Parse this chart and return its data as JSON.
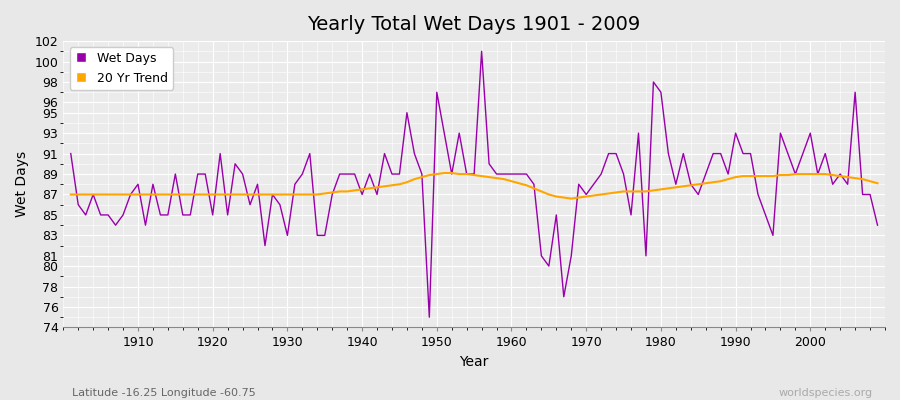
{
  "title": "Yearly Total Wet Days 1901 - 2009",
  "xlabel": "Year",
  "ylabel": "Wet Days",
  "subtitle": "Latitude -16.25 Longitude -60.75",
  "watermark": "worldspecies.org",
  "ylim": [
    74,
    102
  ],
  "yticks": [
    74,
    76,
    78,
    80,
    81,
    83,
    85,
    87,
    89,
    91,
    93,
    95,
    96,
    98,
    100,
    102
  ],
  "xticks": [
    1910,
    1920,
    1930,
    1940,
    1950,
    1960,
    1970,
    1980,
    1990,
    2000
  ],
  "years": [
    1901,
    1902,
    1903,
    1904,
    1905,
    1906,
    1907,
    1908,
    1909,
    1910,
    1911,
    1912,
    1913,
    1914,
    1915,
    1916,
    1917,
    1918,
    1919,
    1920,
    1921,
    1922,
    1923,
    1924,
    1925,
    1926,
    1927,
    1928,
    1929,
    1930,
    1931,
    1932,
    1933,
    1934,
    1935,
    1936,
    1937,
    1938,
    1939,
    1940,
    1941,
    1942,
    1943,
    1944,
    1945,
    1946,
    1947,
    1948,
    1949,
    1950,
    1951,
    1952,
    1953,
    1954,
    1955,
    1956,
    1957,
    1958,
    1959,
    1960,
    1961,
    1962,
    1963,
    1964,
    1965,
    1966,
    1967,
    1968,
    1969,
    1970,
    1971,
    1972,
    1973,
    1974,
    1975,
    1976,
    1977,
    1978,
    1979,
    1980,
    1981,
    1982,
    1983,
    1984,
    1985,
    1986,
    1987,
    1988,
    1989,
    1990,
    1991,
    1992,
    1993,
    1994,
    1995,
    1996,
    1997,
    1998,
    1999,
    2000,
    2001,
    2002,
    2003,
    2004,
    2005,
    2006,
    2007,
    2008,
    2009
  ],
  "wet_days": [
    91,
    86,
    85,
    87,
    85,
    85,
    84,
    85,
    87,
    88,
    84,
    88,
    85,
    85,
    89,
    85,
    85,
    89,
    89,
    85,
    91,
    85,
    90,
    89,
    86,
    88,
    82,
    87,
    86,
    83,
    88,
    89,
    91,
    83,
    83,
    87,
    89,
    89,
    89,
    87,
    89,
    87,
    91,
    89,
    89,
    95,
    91,
    89,
    75,
    97,
    93,
    89,
    93,
    89,
    89,
    101,
    90,
    89,
    89,
    89,
    89,
    89,
    88,
    81,
    80,
    85,
    77,
    81,
    88,
    87,
    88,
    89,
    91,
    91,
    89,
    85,
    93,
    81,
    98,
    97,
    91,
    88,
    91,
    88,
    87,
    89,
    91,
    91,
    89,
    93,
    91,
    91,
    87,
    85,
    83,
    93,
    91,
    89,
    91,
    93,
    89,
    91,
    88,
    89,
    88,
    97,
    87,
    87,
    84
  ],
  "trend": [
    87.0,
    87.0,
    87.0,
    87.0,
    87.0,
    87.0,
    87.0,
    87.0,
    87.0,
    87.0,
    87.0,
    87.0,
    87.0,
    87.0,
    87.0,
    87.0,
    87.0,
    87.0,
    87.0,
    87.0,
    87.0,
    87.0,
    87.0,
    87.0,
    87.0,
    87.0,
    87.0,
    87.0,
    87.0,
    87.0,
    87.0,
    87.0,
    87.0,
    87.0,
    87.1,
    87.2,
    87.3,
    87.3,
    87.4,
    87.5,
    87.6,
    87.7,
    87.8,
    87.9,
    88.0,
    88.2,
    88.5,
    88.7,
    88.9,
    89.0,
    89.1,
    89.1,
    89.0,
    89.0,
    88.9,
    88.8,
    88.7,
    88.6,
    88.5,
    88.3,
    88.1,
    87.9,
    87.6,
    87.3,
    87.0,
    86.8,
    86.7,
    86.6,
    86.7,
    86.8,
    86.9,
    87.0,
    87.1,
    87.2,
    87.3,
    87.3,
    87.3,
    87.3,
    87.4,
    87.5,
    87.6,
    87.7,
    87.8,
    87.9,
    88.0,
    88.1,
    88.2,
    88.3,
    88.5,
    88.7,
    88.8,
    88.8,
    88.8,
    88.8,
    88.8,
    88.9,
    88.9,
    89.0,
    89.0,
    89.0,
    89.0,
    89.0,
    88.9,
    88.8,
    88.7,
    88.6,
    88.5,
    88.3,
    88.1
  ],
  "wet_days_color": "#9900aa",
  "trend_color": "#ffa500",
  "bg_color": "#e8e8e8",
  "plot_bg_color": "#ebebeb",
  "grid_color": "#ffffff",
  "title_fontsize": 14,
  "label_fontsize": 10,
  "tick_fontsize": 9,
  "legend_fontsize": 9,
  "xlim_left": 1900,
  "xlim_right": 2010
}
